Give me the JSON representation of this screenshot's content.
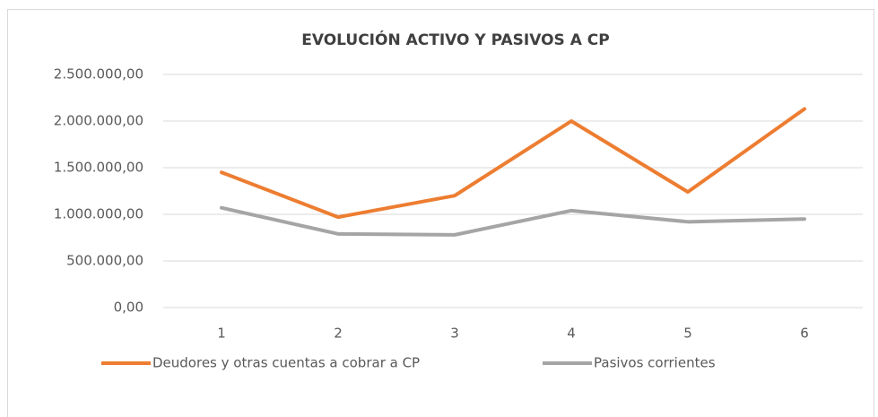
{
  "chart_data": {
    "type": "line",
    "title": "EVOLUCIÓN ACTIVO Y PASIVOS A CP",
    "categories": [
      "1",
      "2",
      "3",
      "4",
      "5",
      "6"
    ],
    "series": [
      {
        "name": "Deudores y otras cuentas a cobrar a CP",
        "color": "#ed7d31",
        "values": [
          1450000,
          970000,
          1200000,
          2000000,
          1240000,
          2130000
        ]
      },
      {
        "name": "Pasivos corrientes",
        "color": "#a5a5a5",
        "values": [
          1070000,
          790000,
          780000,
          1040000,
          920000,
          950000
        ]
      }
    ],
    "ylim": [
      0,
      2500000
    ],
    "yticks": [
      {
        "value": 0,
        "label": "0,00"
      },
      {
        "value": 500000,
        "label": "500.000,00"
      },
      {
        "value": 1000000,
        "label": "1.000.000,00"
      },
      {
        "value": 1500000,
        "label": "1.500.000,00"
      },
      {
        "value": 2000000,
        "label": "2.000.000,00"
      },
      {
        "value": 2500000,
        "label": "2.500.000,00"
      }
    ],
    "grid": true,
    "legend": "bottom"
  }
}
